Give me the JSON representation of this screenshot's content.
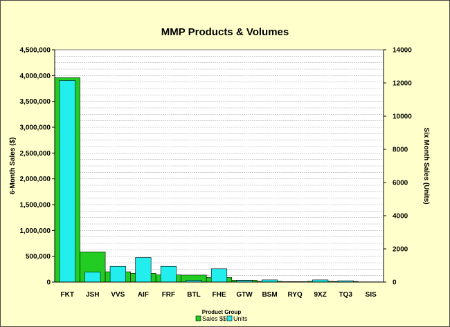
{
  "chart_data": {
    "type": "bar",
    "title": "MMP Products & Volumes",
    "xlabel": "Product Group",
    "ylabel": "6-Month Sales ($)",
    "y2label": "Six Month Sales (Units)",
    "categories": [
      "FKT",
      "JSH",
      "VVS",
      "AIF",
      "FRF",
      "BTL",
      "FHE",
      "GTW",
      "BSM",
      "RYQ",
      "9XZ",
      "TQ3",
      "SIS"
    ],
    "series": [
      {
        "name": "Sales $$",
        "axis": "left",
        "color": "#22cc22",
        "values": [
          3960000,
          585000,
          200000,
          170000,
          140000,
          135000,
          90000,
          35000,
          15000,
          8000,
          15000,
          12000,
          4000
        ]
      },
      {
        "name": "Units",
        "axis": "right",
        "color": "#22eeee",
        "values": [
          12150,
          600,
          950,
          1480,
          950,
          100,
          800,
          100,
          130,
          20,
          130,
          80,
          0
        ]
      }
    ],
    "ylim": [
      0,
      4500000
    ],
    "y2lim": [
      0,
      14000
    ],
    "yticks": [
      "0",
      "500,000",
      "1,000,000",
      "1,500,000",
      "2,000,000",
      "2,500,000",
      "3,000,000",
      "3,500,000",
      "4,000,000",
      "4,500,000"
    ],
    "y2ticks": [
      "0",
      "2000",
      "4000",
      "6000",
      "8000",
      "10000",
      "12000",
      "14000"
    ],
    "grid": true,
    "legend_position": "bottom-center"
  }
}
